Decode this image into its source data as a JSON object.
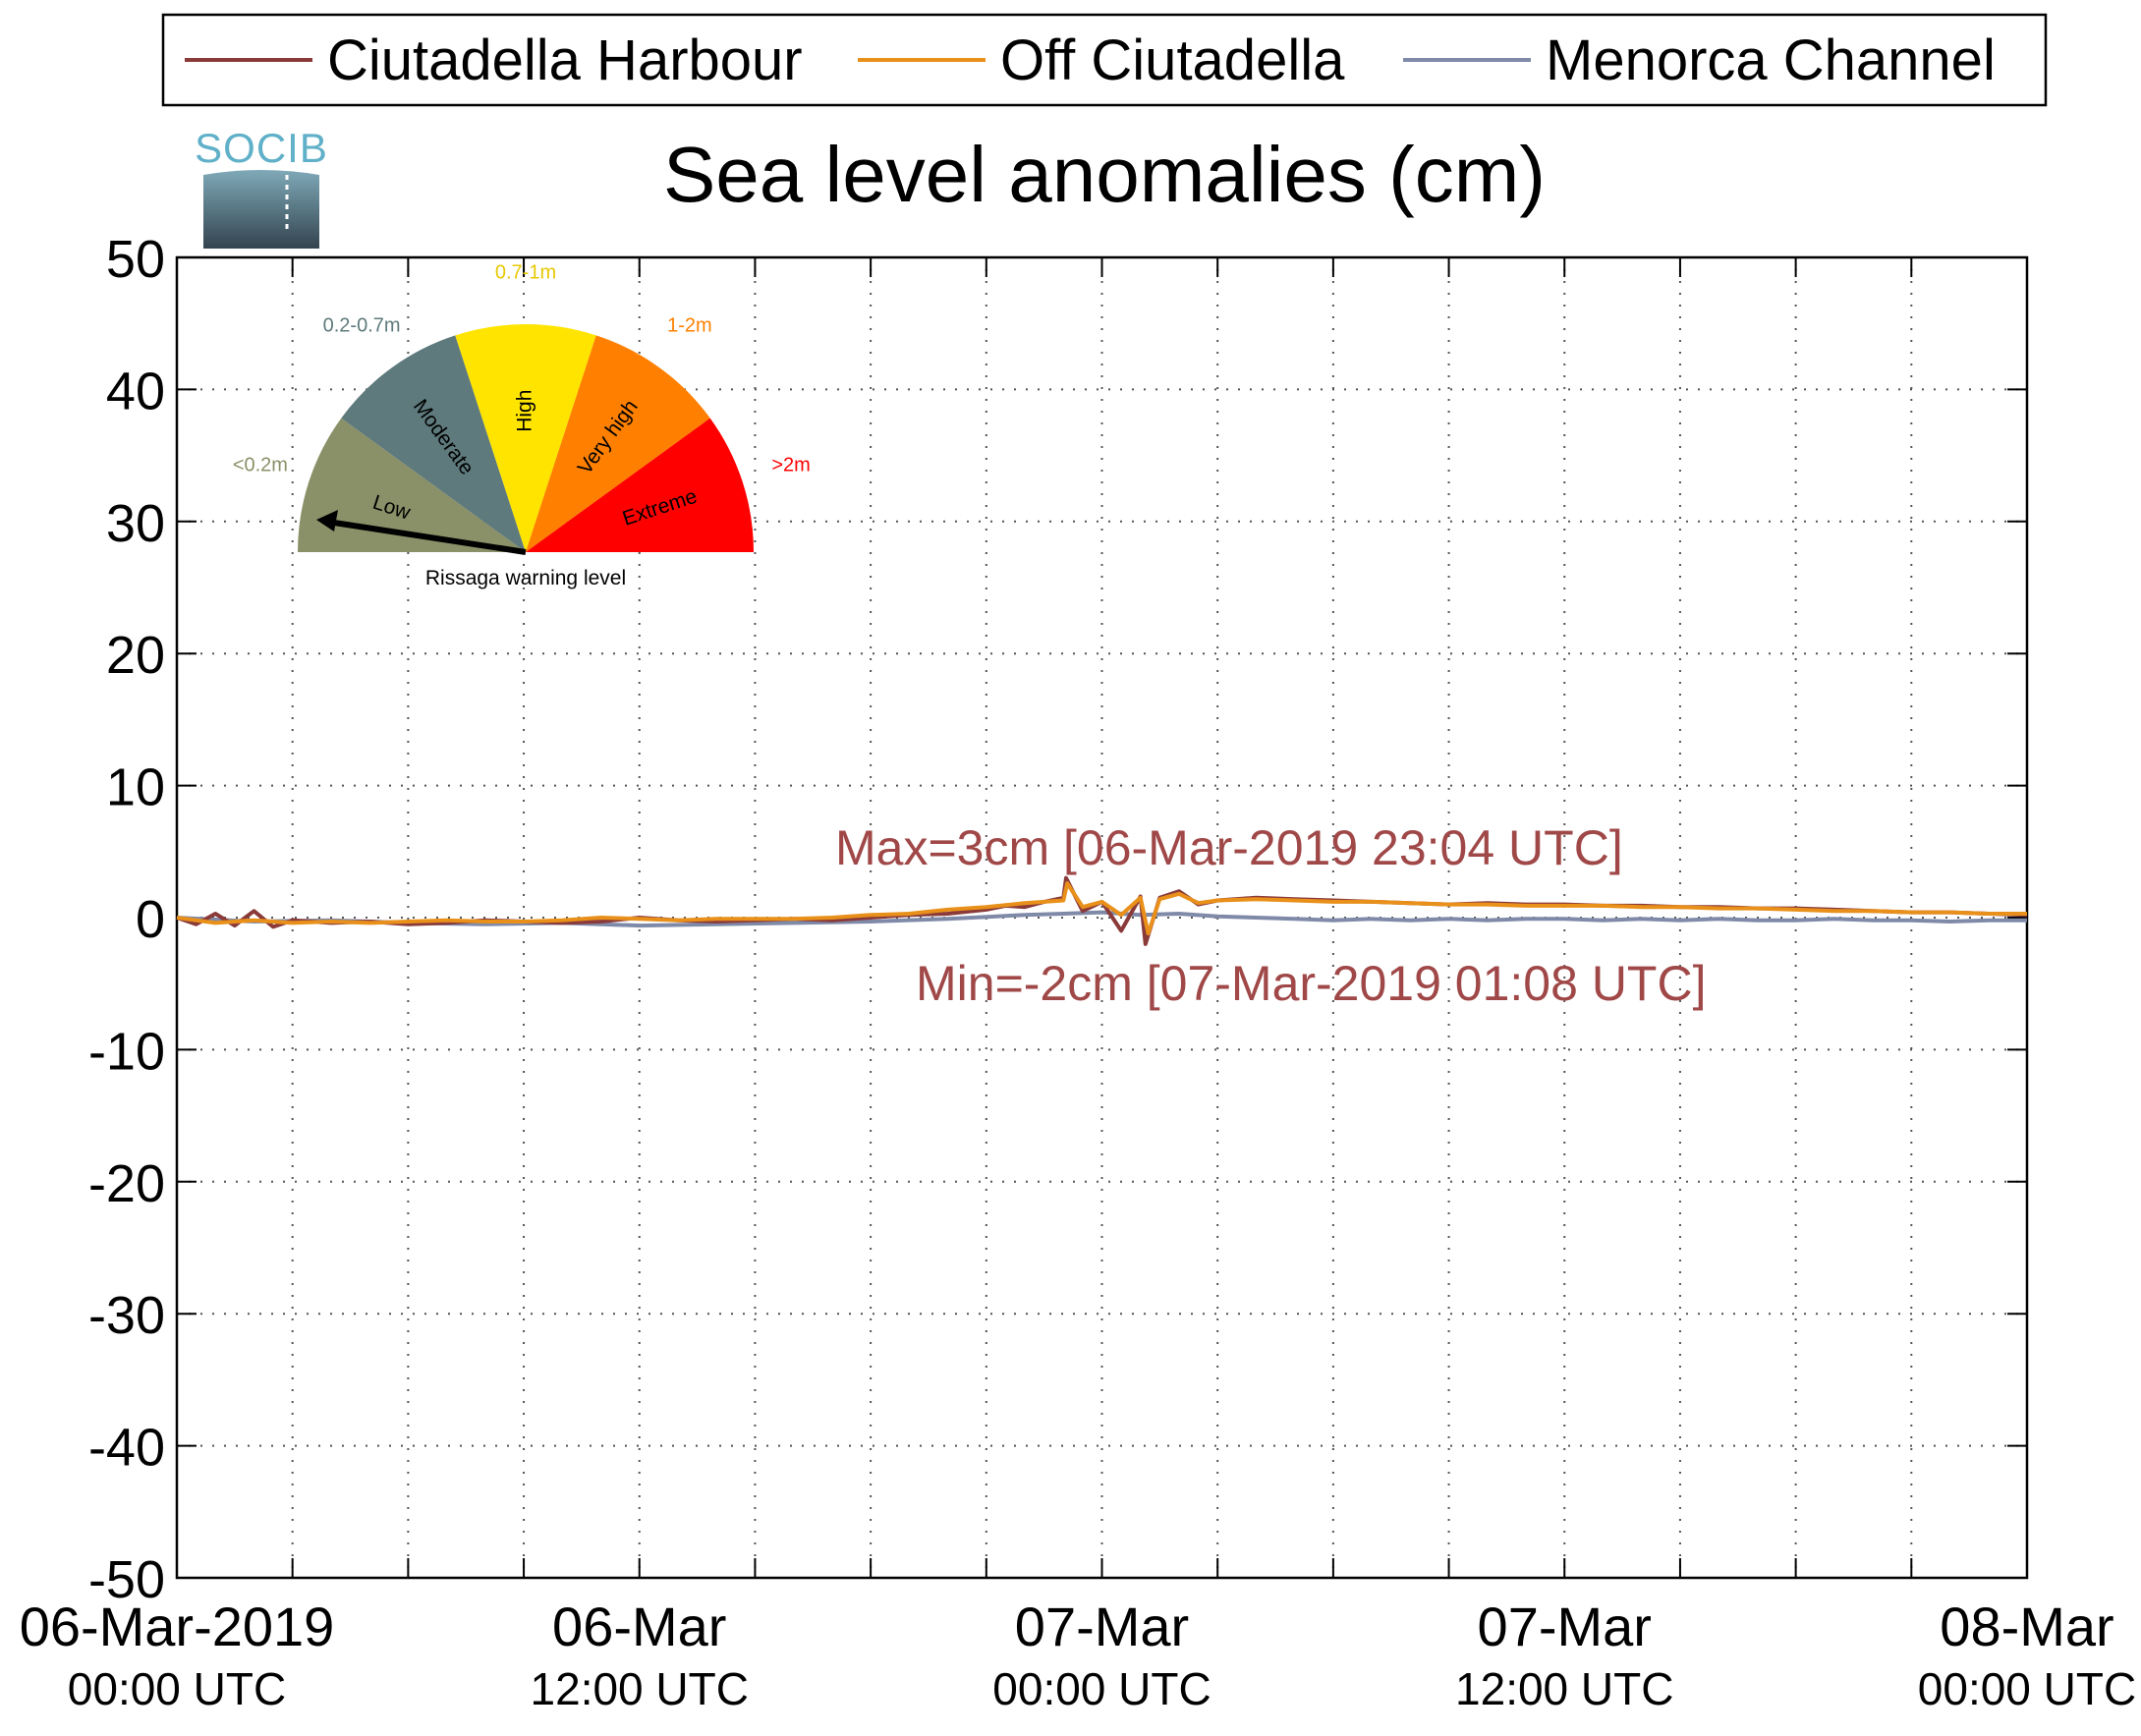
{
  "logo": {
    "text": "SOCIB",
    "colors": {
      "text": "#5fb0c8",
      "top": "#7fa9b8",
      "bottom": "#33444f"
    }
  },
  "chart_data": {
    "type": "line",
    "title": "Sea level anomalies (cm)",
    "xlabel": "",
    "ylabel": "",
    "ylim": [
      -50,
      50
    ],
    "y_ticks": [
      "50",
      "40",
      "30",
      "20",
      "10",
      "0",
      "-10",
      "-20",
      "-30",
      "-40",
      "-50"
    ],
    "xlim_hours": [
      0,
      48
    ],
    "x_ticks": [
      {
        "hour": 0,
        "line1": "06-Mar-2019",
        "line2": "00:00 UTC"
      },
      {
        "hour": 12,
        "line1": "06-Mar",
        "line2": "12:00 UTC"
      },
      {
        "hour": 24,
        "line1": "07-Mar",
        "line2": "00:00 UTC"
      },
      {
        "hour": 36,
        "line1": "07-Mar",
        "line2": "12:00 UTC"
      },
      {
        "hour": 48,
        "line1": "08-Mar",
        "line2": "00:00 UTC"
      }
    ],
    "grid": true,
    "legend_position": "top, above plot",
    "series": [
      {
        "name": "Ciutadella Harbour",
        "color": "#8b3a3a",
        "x": [
          0,
          0.5,
          1,
          1.5,
          2,
          2.5,
          3,
          4,
          5,
          6,
          7,
          8,
          9,
          10,
          11,
          12,
          13,
          14,
          15,
          16,
          17,
          18,
          19,
          20,
          21,
          21.5,
          22,
          22.5,
          23,
          23.07,
          23.5,
          24,
          24.5,
          25,
          25.13,
          25.5,
          26,
          26.5,
          27,
          28,
          29,
          30,
          31,
          32,
          33,
          34,
          35,
          36,
          37,
          38,
          39,
          40,
          41,
          42,
          43,
          44,
          45,
          46,
          47,
          48
        ],
        "y": [
          0,
          -0.5,
          0.3,
          -0.6,
          0.5,
          -0.7,
          -0.2,
          -0.4,
          -0.3,
          -0.5,
          -0.4,
          -0.2,
          -0.3,
          -0.4,
          -0.3,
          0,
          -0.2,
          -0.3,
          -0.2,
          -0.1,
          -0.2,
          0,
          0.2,
          0.3,
          0.6,
          0.9,
          0.8,
          1.2,
          1.5,
          3,
          0.5,
          1.2,
          -1,
          1.6,
          -2,
          1.5,
          2,
          1,
          1.3,
          1.5,
          1.4,
          1.3,
          1.2,
          1.1,
          1.0,
          1.1,
          1.0,
          1.0,
          0.9,
          0.9,
          0.8,
          0.8,
          0.7,
          0.7,
          0.6,
          0.5,
          0.4,
          0.4,
          0.3,
          0.2
        ]
      },
      {
        "name": "Off Ciutadella",
        "color": "#e8901a",
        "x": [
          0,
          1,
          2,
          3,
          4,
          5,
          6,
          7,
          8,
          9,
          10,
          11,
          12,
          13,
          14,
          15,
          16,
          17,
          18,
          19,
          20,
          21,
          22,
          22.5,
          23,
          23.1,
          23.5,
          24,
          24.5,
          25,
          25.2,
          25.5,
          26,
          26.5,
          27,
          28,
          29,
          30,
          31,
          32,
          33,
          34,
          35,
          36,
          37,
          38,
          39,
          40,
          41,
          42,
          43,
          44,
          45,
          46,
          47,
          48
        ],
        "y": [
          0,
          -0.4,
          -0.2,
          -0.4,
          -0.3,
          -0.4,
          -0.3,
          -0.2,
          -0.3,
          -0.3,
          -0.2,
          0,
          -0.1,
          -0.2,
          -0.1,
          -0.1,
          -0.1,
          0,
          0.2,
          0.3,
          0.6,
          0.8,
          1.1,
          1.2,
          1.3,
          2.6,
          0.8,
          1.2,
          0.2,
          1.5,
          -1.2,
          1.4,
          1.8,
          1.1,
          1.3,
          1.4,
          1.3,
          1.2,
          1.2,
          1.1,
          1.0,
          1.0,
          0.9,
          0.9,
          0.9,
          0.8,
          0.8,
          0.7,
          0.7,
          0.6,
          0.5,
          0.5,
          0.4,
          0.4,
          0.3,
          0.3
        ]
      },
      {
        "name": "Menorca Channel",
        "color": "#7f8aa8",
        "x": [
          0,
          2,
          4,
          6,
          8,
          10,
          12,
          14,
          16,
          18,
          20,
          22,
          23,
          24,
          25,
          26,
          27,
          28,
          29,
          30,
          31,
          32,
          33,
          34,
          35,
          36,
          37,
          38,
          39,
          40,
          41,
          42,
          43,
          44,
          45,
          46,
          47,
          48
        ],
        "y": [
          0,
          -0.3,
          -0.2,
          -0.4,
          -0.5,
          -0.4,
          -0.6,
          -0.5,
          -0.4,
          -0.3,
          -0.1,
          0.2,
          0.3,
          0.4,
          0.2,
          0.3,
          0.1,
          0.0,
          -0.1,
          -0.2,
          -0.1,
          -0.2,
          -0.1,
          -0.2,
          -0.1,
          -0.1,
          -0.2,
          -0.1,
          -0.2,
          -0.1,
          -0.2,
          -0.2,
          -0.1,
          -0.2,
          -0.2,
          -0.3,
          -0.2,
          -0.2
        ]
      }
    ],
    "annotations": [
      {
        "text": "Max=3cm [06-Mar-2019 23:04 UTC]",
        "color": "#a04848"
      },
      {
        "text": "Min=-2cm [07-Mar-2019 01:08 UTC]",
        "color": "#a04848"
      }
    ]
  },
  "gauge": {
    "caption": "Rissaga warning level",
    "current_level": "Low",
    "sectors": [
      {
        "name": "Low",
        "range": "<0.2m",
        "color": "#8a9068",
        "range_color": "#8a9068"
      },
      {
        "name": "Moderate",
        "range": "0.2-0.7m",
        "color": "#5e7a7c",
        "range_color": "#5e7a7c"
      },
      {
        "name": "High",
        "range": "0.7-1m",
        "color": "#ffe400",
        "range_color": "#e8c800"
      },
      {
        "name": "Very high",
        "range": "1-2m",
        "color": "#ff8000",
        "range_color": "#ff8000"
      },
      {
        "name": "Extreme",
        "range": ">2m",
        "color": "#ff0000",
        "range_color": "#ff0000"
      }
    ]
  }
}
